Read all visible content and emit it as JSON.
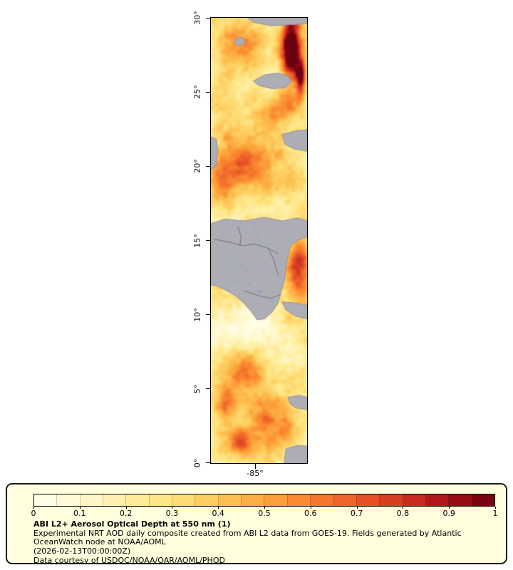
{
  "map": {
    "ytick_labels": [
      "30°",
      "25°",
      "20°",
      "15°",
      "10°",
      "5°",
      "0°"
    ],
    "xtick_label": "-85°"
  },
  "colorbar": {
    "ticks": [
      "0",
      "0.1",
      "0.2",
      "0.3",
      "0.4",
      "0.5",
      "0.6",
      "0.7",
      "0.8",
      "0.9",
      "1"
    ],
    "segments": 20,
    "min": 0,
    "max": 1
  },
  "legend": {
    "title": "ABI L2+ Aerosol Optical Depth at 550 nm (1)",
    "description": "Experimental NRT AOD daily composite created from ABI L2 data from GOES-19. Fields generated by Atlantic OceanWatch node at NOAA/AOML",
    "timestamp": "(2026-02-13T00:00:00Z)",
    "courtesy": "Data courtesy of USDOC/NOAA/OAR/AOML/PHOD"
  },
  "chart_data": {
    "type": "heatmap",
    "title": "ABI L2+ Aerosol Optical Depth at 550 nm (1)",
    "ylabel_ticks_latitude": [
      "0°",
      "5°",
      "10°",
      "15°",
      "20°",
      "25°",
      "30°"
    ],
    "xlabel_ticks_longitude": [
      "-85°"
    ],
    "colorbar_range": [
      0,
      1
    ],
    "colorbar_ticks": [
      0,
      0.1,
      0.2,
      0.3,
      0.4,
      0.5,
      0.6,
      0.7,
      0.8,
      0.9,
      1
    ],
    "legend_position": "bottom",
    "grid": false
  },
  "map_render": {
    "base": 0.26,
    "noise_amp": 0.38,
    "speckle_amp": 0.1,
    "nodata_color": "#adadb5",
    "coast_color": "#9494a0",
    "border_color": "#62626e",
    "river_color": "#8fa3c2",
    "colormap": [
      [
        0,
        "#ffffef"
      ],
      [
        0.1,
        "#fff9cf"
      ],
      [
        0.2,
        "#ffefa5"
      ],
      [
        0.3,
        "#fee27d"
      ],
      [
        0.4,
        "#fec758"
      ],
      [
        0.5,
        "#fda73e"
      ],
      [
        0.6,
        "#f9812f"
      ],
      [
        0.7,
        "#ea5a28"
      ],
      [
        0.8,
        "#d23420"
      ],
      [
        0.9,
        "#a80f15"
      ],
      [
        1,
        "#6b0010"
      ]
    ],
    "hotspots": [
      [
        0.83,
        0.065,
        0.1,
        0.075,
        0.95
      ],
      [
        0.93,
        0.135,
        0.05,
        0.04,
        0.7
      ],
      [
        0.3,
        0.055,
        0.25,
        0.045,
        0.28
      ],
      [
        0.7,
        0.205,
        0.22,
        0.035,
        0.28
      ],
      [
        0.38,
        0.325,
        0.34,
        0.065,
        0.42
      ],
      [
        0.12,
        0.375,
        0.15,
        0.045,
        0.3
      ],
      [
        0.92,
        0.555,
        0.13,
        0.065,
        0.55
      ],
      [
        0.38,
        0.795,
        0.2,
        0.05,
        0.38
      ],
      [
        0.15,
        0.862,
        0.12,
        0.03,
        0.3
      ],
      [
        0.56,
        0.9,
        0.2,
        0.05,
        0.42
      ],
      [
        0.3,
        0.952,
        0.13,
        0.03,
        0.38
      ],
      [
        0.8,
        0.93,
        0.1,
        0.04,
        0.28
      ],
      [
        0.35,
        0.705,
        0.4,
        0.05,
        -0.16
      ],
      [
        0.25,
        0.43,
        0.25,
        0.03,
        -0.1
      ]
    ],
    "nodata_polygons": [
      [
        [
          0.38,
          0.0
        ],
        [
          1,
          0.0
        ],
        [
          1,
          0.013
        ],
        [
          0.62,
          0.018
        ],
        [
          0.44,
          0.01
        ]
      ],
      [
        [
          0.24,
          0.048
        ],
        [
          0.33,
          0.044
        ],
        [
          0.355,
          0.058
        ],
        [
          0.27,
          0.063
        ]
      ],
      [
        [
          0.44,
          0.142
        ],
        [
          0.56,
          0.128
        ],
        [
          0.7,
          0.124
        ],
        [
          0.8,
          0.13
        ],
        [
          0.835,
          0.143
        ],
        [
          0.78,
          0.157
        ],
        [
          0.63,
          0.159
        ],
        [
          0.5,
          0.152
        ]
      ],
      [
        [
          0.74,
          0.262
        ],
        [
          0.88,
          0.254
        ],
        [
          1,
          0.251
        ],
        [
          1,
          0.3
        ],
        [
          0.86,
          0.294
        ],
        [
          0.77,
          0.284
        ]
      ],
      [
        [
          0,
          0.268
        ],
        [
          0.055,
          0.272
        ],
        [
          0.075,
          0.3
        ],
        [
          0.05,
          0.334
        ],
        [
          0,
          0.34
        ]
      ],
      [
        [
          0,
          0.462
        ],
        [
          0.15,
          0.452
        ],
        [
          0.35,
          0.456
        ],
        [
          0.55,
          0.448
        ],
        [
          0.75,
          0.456
        ],
        [
          0.9,
          0.449
        ],
        [
          1,
          0.456
        ],
        [
          1,
          0.492
        ],
        [
          0.9,
          0.5
        ],
        [
          0.83,
          0.512
        ],
        [
          0.79,
          0.548
        ],
        [
          0.765,
          0.59
        ],
        [
          0.73,
          0.615
        ],
        [
          0.7,
          0.64
        ],
        [
          0.64,
          0.66
        ],
        [
          0.56,
          0.676
        ],
        [
          0.48,
          0.678
        ],
        [
          0.42,
          0.66
        ],
        [
          0.34,
          0.64
        ],
        [
          0.24,
          0.622
        ],
        [
          0.14,
          0.61
        ],
        [
          0.06,
          0.602
        ],
        [
          0,
          0.6
        ]
      ],
      [
        [
          0.74,
          0.638
        ],
        [
          0.86,
          0.64
        ],
        [
          1,
          0.645
        ],
        [
          1,
          0.676
        ],
        [
          0.88,
          0.67
        ],
        [
          0.78,
          0.656
        ]
      ],
      [
        [
          0.8,
          0.852
        ],
        [
          0.92,
          0.848
        ],
        [
          1,
          0.852
        ],
        [
          1,
          0.88
        ],
        [
          0.88,
          0.876
        ],
        [
          0.82,
          0.866
        ]
      ],
      [
        [
          0.78,
          0.968
        ],
        [
          0.9,
          0.96
        ],
        [
          1,
          0.962
        ],
        [
          1,
          1
        ],
        [
          0.76,
          1
        ]
      ]
    ],
    "border_lines": [
      [
        [
          0.03,
          0.497
        ],
        [
          0.18,
          0.503
        ],
        [
          0.33,
          0.512
        ],
        [
          0.46,
          0.508
        ],
        [
          0.6,
          0.518
        ],
        [
          0.7,
          0.53
        ]
      ],
      [
        [
          0.34,
          0.612
        ],
        [
          0.48,
          0.623
        ],
        [
          0.62,
          0.63
        ],
        [
          0.72,
          0.622
        ]
      ],
      [
        [
          0.28,
          0.468
        ],
        [
          0.315,
          0.492
        ],
        [
          0.3,
          0.512
        ]
      ],
      [
        [
          0.6,
          0.518
        ],
        [
          0.66,
          0.548
        ],
        [
          0.7,
          0.578
        ]
      ]
    ],
    "river_lines": [
      [
        [
          0.1,
          0.52
        ],
        [
          0.2,
          0.54
        ],
        [
          0.3,
          0.556
        ],
        [
          0.4,
          0.57
        ]
      ],
      [
        [
          0.44,
          0.47
        ],
        [
          0.5,
          0.5
        ],
        [
          0.55,
          0.525
        ]
      ],
      [
        [
          0.15,
          0.575
        ],
        [
          0.25,
          0.59
        ],
        [
          0.35,
          0.6
        ]
      ]
    ],
    "lakes": [
      [
        0.5,
        0.615,
        0.022
      ],
      [
        0.4,
        0.598,
        0.012
      ]
    ]
  }
}
